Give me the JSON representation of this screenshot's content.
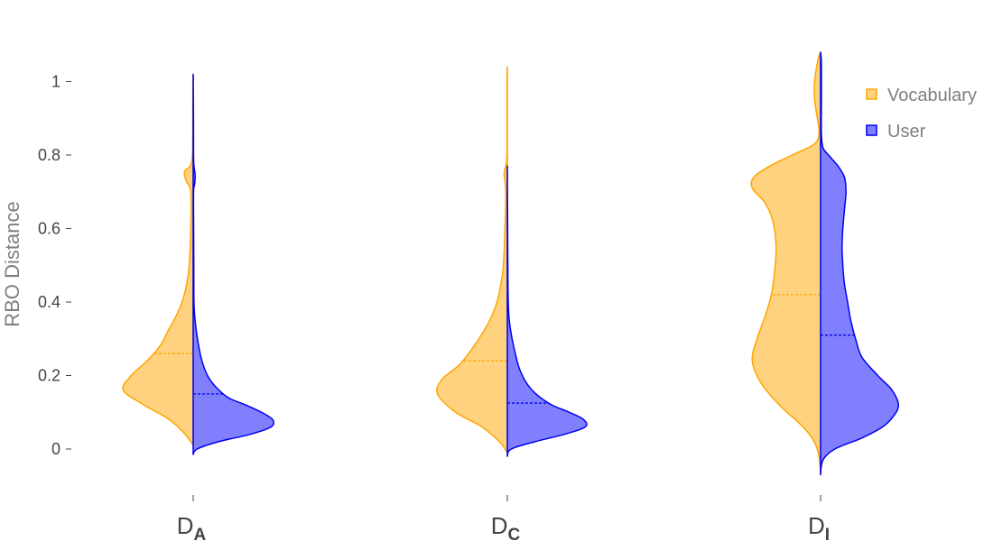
{
  "chart_data": {
    "type": "violin",
    "ylabel": "RBO Distance",
    "ylim": [
      -0.12,
      1.08
    ],
    "y_ticks": [
      0,
      0.2,
      0.4,
      0.6,
      0.8,
      1
    ],
    "y_tick_labels": [
      "0",
      "0.2",
      "0.4",
      "0.6",
      "0.8",
      "1"
    ],
    "grid": false,
    "legend_position": "top-right",
    "categories": [
      {
        "main": "D",
        "sub": "A"
      },
      {
        "main": "D",
        "sub": "C"
      },
      {
        "main": "D",
        "sub": "I"
      }
    ],
    "series": [
      {
        "name": "Vocabulary",
        "side": "negative",
        "color": "#FFA500",
        "fill": "#FFD280",
        "violins": [
          {
            "min": 0.01,
            "max": 1.02,
            "mean": 0.26,
            "profile": [
              [
                0.01,
                0.0
              ],
              [
                0.04,
                0.1
              ],
              [
                0.08,
                0.3
              ],
              [
                0.12,
                0.62
              ],
              [
                0.16,
                0.88
              ],
              [
                0.2,
                0.78
              ],
              [
                0.24,
                0.58
              ],
              [
                0.28,
                0.42
              ],
              [
                0.32,
                0.32
              ],
              [
                0.36,
                0.22
              ],
              [
                0.4,
                0.14
              ],
              [
                0.45,
                0.08
              ],
              [
                0.5,
                0.05
              ],
              [
                0.6,
                0.03
              ],
              [
                0.7,
                0.03
              ],
              [
                0.73,
                0.09
              ],
              [
                0.755,
                0.11
              ],
              [
                0.77,
                0.04
              ],
              [
                0.8,
                0.01
              ],
              [
                0.9,
                0.005
              ],
              [
                1.0,
                0.004
              ],
              [
                1.02,
                0.0
              ]
            ]
          },
          {
            "min": -0.01,
            "max": 1.04,
            "mean": 0.24,
            "profile": [
              [
                -0.01,
                0.0
              ],
              [
                0.02,
                0.1
              ],
              [
                0.06,
                0.32
              ],
              [
                0.1,
                0.65
              ],
              [
                0.15,
                0.88
              ],
              [
                0.19,
                0.82
              ],
              [
                0.23,
                0.6
              ],
              [
                0.28,
                0.42
              ],
              [
                0.32,
                0.3
              ],
              [
                0.36,
                0.2
              ],
              [
                0.4,
                0.13
              ],
              [
                0.45,
                0.08
              ],
              [
                0.5,
                0.05
              ],
              [
                0.6,
                0.03
              ],
              [
                0.7,
                0.02
              ],
              [
                0.75,
                0.04
              ],
              [
                0.77,
                0.02
              ],
              [
                0.8,
                0.005
              ],
              [
                0.9,
                0.004
              ],
              [
                1.0,
                0.004
              ],
              [
                1.04,
                0.0
              ]
            ]
          },
          {
            "min": -0.07,
            "max": 1.08,
            "mean": 0.42,
            "profile": [
              [
                -0.07,
                0.0
              ],
              [
                -0.02,
                0.02
              ],
              [
                0.02,
                0.08
              ],
              [
                0.06,
                0.22
              ],
              [
                0.12,
                0.52
              ],
              [
                0.18,
                0.75
              ],
              [
                0.24,
                0.86
              ],
              [
                0.3,
                0.8
              ],
              [
                0.36,
                0.7
              ],
              [
                0.42,
                0.62
              ],
              [
                0.48,
                0.58
              ],
              [
                0.55,
                0.56
              ],
              [
                0.62,
                0.6
              ],
              [
                0.67,
                0.7
              ],
              [
                0.71,
                0.86
              ],
              [
                0.74,
                0.84
              ],
              [
                0.77,
                0.64
              ],
              [
                0.8,
                0.36
              ],
              [
                0.83,
                0.08
              ],
              [
                0.86,
                0.02
              ],
              [
                0.9,
                0.04
              ],
              [
                0.94,
                0.07
              ],
              [
                0.98,
                0.08
              ],
              [
                1.01,
                0.07
              ],
              [
                1.04,
                0.05
              ],
              [
                1.07,
                0.02
              ],
              [
                1.08,
                0.0
              ]
            ]
          }
        ]
      },
      {
        "name": "User",
        "side": "positive",
        "color": "#0000EE",
        "fill": "#8080FF",
        "violins": [
          {
            "min": -0.015,
            "max": 1.02,
            "mean": 0.15,
            "profile": [
              [
                -0.015,
                0.0
              ],
              [
                0.0,
                0.05
              ],
              [
                0.02,
                0.32
              ],
              [
                0.04,
                0.72
              ],
              [
                0.06,
                0.98
              ],
              [
                0.08,
                1.0
              ],
              [
                0.1,
                0.86
              ],
              [
                0.12,
                0.66
              ],
              [
                0.14,
                0.44
              ],
              [
                0.17,
                0.28
              ],
              [
                0.2,
                0.18
              ],
              [
                0.24,
                0.11
              ],
              [
                0.28,
                0.07
              ],
              [
                0.32,
                0.04
              ],
              [
                0.36,
                0.02
              ],
              [
                0.4,
                0.01
              ],
              [
                0.5,
                0.008
              ],
              [
                0.6,
                0.006
              ],
              [
                0.7,
                0.005
              ],
              [
                0.72,
                0.018
              ],
              [
                0.745,
                0.025
              ],
              [
                0.77,
                0.01
              ],
              [
                0.8,
                0.005
              ],
              [
                0.9,
                0.004
              ],
              [
                1.02,
                0.0
              ]
            ]
          },
          {
            "min": -0.02,
            "max": 0.77,
            "mean": 0.125,
            "profile": [
              [
                -0.02,
                0.0
              ],
              [
                0.0,
                0.05
              ],
              [
                0.02,
                0.35
              ],
              [
                0.04,
                0.72
              ],
              [
                0.06,
                0.98
              ],
              [
                0.08,
                0.96
              ],
              [
                0.1,
                0.78
              ],
              [
                0.12,
                0.56
              ],
              [
                0.15,
                0.36
              ],
              [
                0.18,
                0.24
              ],
              [
                0.22,
                0.15
              ],
              [
                0.26,
                0.1
              ],
              [
                0.3,
                0.06
              ],
              [
                0.34,
                0.03
              ],
              [
                0.38,
                0.015
              ],
              [
                0.45,
                0.008
              ],
              [
                0.6,
                0.004
              ],
              [
                0.77,
                0.0
              ]
            ]
          },
          {
            "min": -0.07,
            "max": 1.08,
            "mean": 0.31,
            "profile": [
              [
                -0.07,
                0.0
              ],
              [
                -0.03,
                0.03
              ],
              [
                0.0,
                0.18
              ],
              [
                0.03,
                0.52
              ],
              [
                0.06,
                0.78
              ],
              [
                0.09,
                0.92
              ],
              [
                0.12,
                0.98
              ],
              [
                0.16,
                0.9
              ],
              [
                0.2,
                0.72
              ],
              [
                0.25,
                0.52
              ],
              [
                0.3,
                0.44
              ],
              [
                0.35,
                0.38
              ],
              [
                0.4,
                0.34
              ],
              [
                0.45,
                0.3
              ],
              [
                0.5,
                0.28
              ],
              [
                0.55,
                0.27
              ],
              [
                0.6,
                0.28
              ],
              [
                0.65,
                0.3
              ],
              [
                0.7,
                0.32
              ],
              [
                0.74,
                0.3
              ],
              [
                0.77,
                0.22
              ],
              [
                0.8,
                0.1
              ],
              [
                0.82,
                0.03
              ],
              [
                0.86,
                0.01
              ],
              [
                0.95,
                0.01
              ],
              [
                1.05,
                0.01
              ],
              [
                1.08,
                0.0
              ]
            ]
          }
        ]
      }
    ]
  }
}
